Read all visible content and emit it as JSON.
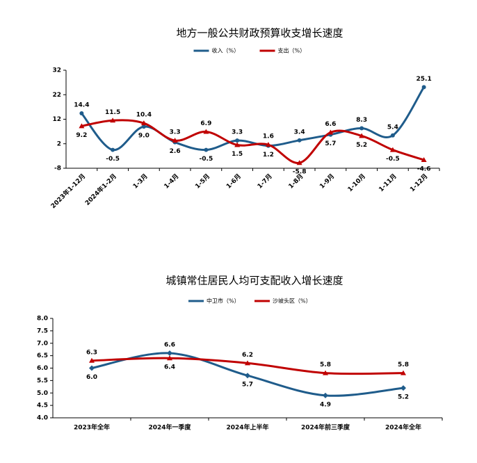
{
  "chart_data": [
    {
      "type": "line",
      "title": "地方一般公共财政预算收支增长速度",
      "categories": [
        "2023年1-12月",
        "2024年1-2月",
        "1-3月",
        "1-4月",
        "1-5月",
        "1-6月",
        "1-7月",
        "1-8月",
        "1-9月",
        "1-10月",
        "1-11月",
        "1-12月"
      ],
      "series": [
        {
          "name": "收入（%）",
          "color": "#1f5c8b",
          "marker": "circle",
          "values": [
            14.4,
            -0.5,
            9.0,
            2.6,
            -0.5,
            3.3,
            1.2,
            3.4,
            5.7,
            8.3,
            5.4,
            25.1
          ],
          "value_labels": [
            "14.4",
            "-0.5",
            "9.0",
            "2.6",
            "-0.5",
            "3.3",
            "1.2",
            "3.4",
            "5.7",
            "8.3",
            "5.4",
            "25.1"
          ]
        },
        {
          "name": "支出（%）",
          "color": "#c00000",
          "marker": "triangle",
          "values": [
            9.2,
            11.5,
            10.4,
            3.3,
            6.9,
            1.5,
            1.6,
            -5.8,
            6.6,
            5.2,
            -0.5,
            -4.6
          ],
          "value_labels": [
            "9.2",
            "11.5",
            "10.4",
            "3.3",
            "6.9",
            "1.5",
            "1.6",
            "-5.8",
            "6.6",
            "5.2",
            "-0.5",
            "-4.6"
          ]
        }
      ],
      "ylim": [
        -8,
        32
      ],
      "yticks": [
        -8,
        2,
        12,
        22,
        32
      ]
    },
    {
      "type": "line",
      "title": "城镇常住居民人均可支配收入增长速度",
      "categories": [
        "2023年全年",
        "2024年一季度",
        "2024年上半年",
        "2024年前三季度",
        "2024年全年"
      ],
      "series": [
        {
          "name": "中卫市（%）",
          "color": "#1f5c8b",
          "marker": "diamond",
          "values": [
            6.0,
            6.6,
            5.7,
            4.9,
            5.2
          ],
          "value_labels": [
            "6.0",
            "6.6",
            "5.7",
            "4.9",
            "5.2"
          ]
        },
        {
          "name": "沙坡头区（%）",
          "color": "#c00000",
          "marker": "triangle",
          "values": [
            6.3,
            6.4,
            6.2,
            5.8,
            5.8
          ],
          "value_labels": [
            "6.3",
            "6.4",
            "6.2",
            "5.8",
            "5.8"
          ]
        }
      ],
      "ylim": [
        4,
        8
      ],
      "yticks": [
        {
          "value": 4,
          "label": "4.0"
        },
        {
          "value": 4.5,
          "label": "4.5"
        },
        {
          "value": 5,
          "label": "5.0"
        },
        {
          "value": 5.5,
          "label": "5.5"
        },
        {
          "value": 6,
          "label": "6.0"
        },
        {
          "value": 6.5,
          "label": "6.5"
        },
        {
          "value": 7,
          "label": "7.0"
        },
        {
          "value": 7.5,
          "label": "7.5"
        },
        {
          "value": 8,
          "label": "8.0"
        }
      ]
    }
  ]
}
